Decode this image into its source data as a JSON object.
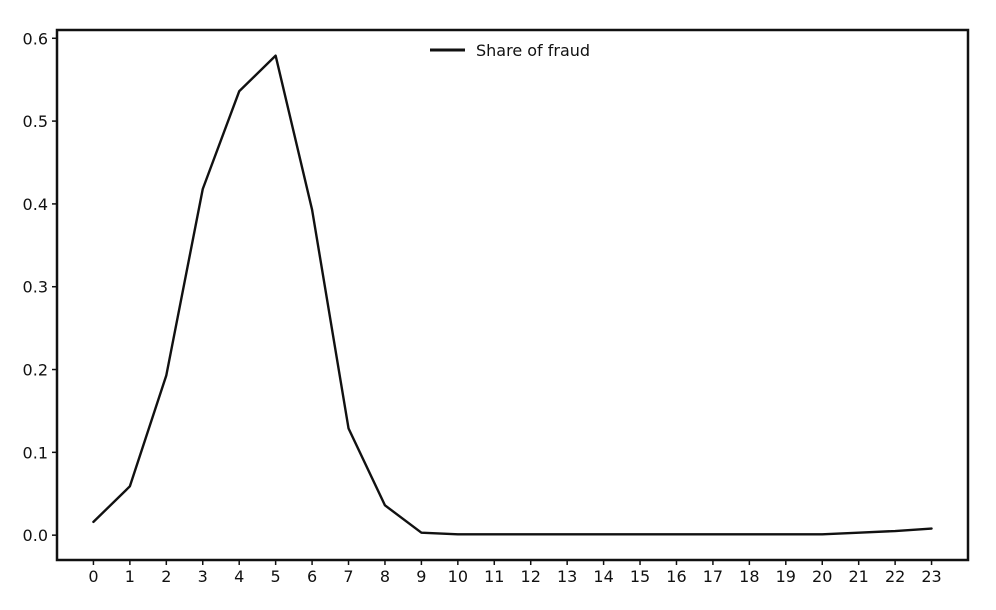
{
  "chart_data": {
    "type": "line",
    "title": "",
    "xlabel": "",
    "ylabel": "",
    "x": [
      0,
      1,
      2,
      3,
      4,
      5,
      6,
      7,
      8,
      9,
      10,
      11,
      12,
      13,
      14,
      15,
      16,
      17,
      18,
      19,
      20,
      21,
      22,
      23
    ],
    "series": [
      {
        "name": "Share of fraud",
        "values": [
          0.016,
          0.059,
          0.193,
          0.418,
          0.536,
          0.579,
          0.393,
          0.129,
          0.036,
          0.003,
          0.001,
          0.001,
          0.001,
          0.001,
          0.001,
          0.001,
          0.001,
          0.001,
          0.001,
          0.001,
          0.001,
          0.003,
          0.005,
          0.008
        ],
        "color": "#111111"
      }
    ],
    "x_ticks": [
      "0",
      "1",
      "2",
      "3",
      "4",
      "5",
      "6",
      "7",
      "8",
      "9",
      "10",
      "11",
      "12",
      "13",
      "14",
      "15",
      "16",
      "17",
      "18",
      "19",
      "20",
      "21",
      "22",
      "23"
    ],
    "y_ticks": [
      "0.0",
      "0.1",
      "0.2",
      "0.3",
      "0.4",
      "0.5",
      "0.6"
    ],
    "xlim": [
      -1,
      24
    ],
    "ylim": [
      -0.03,
      0.61
    ],
    "grid": false,
    "legend_position": "top-center"
  }
}
